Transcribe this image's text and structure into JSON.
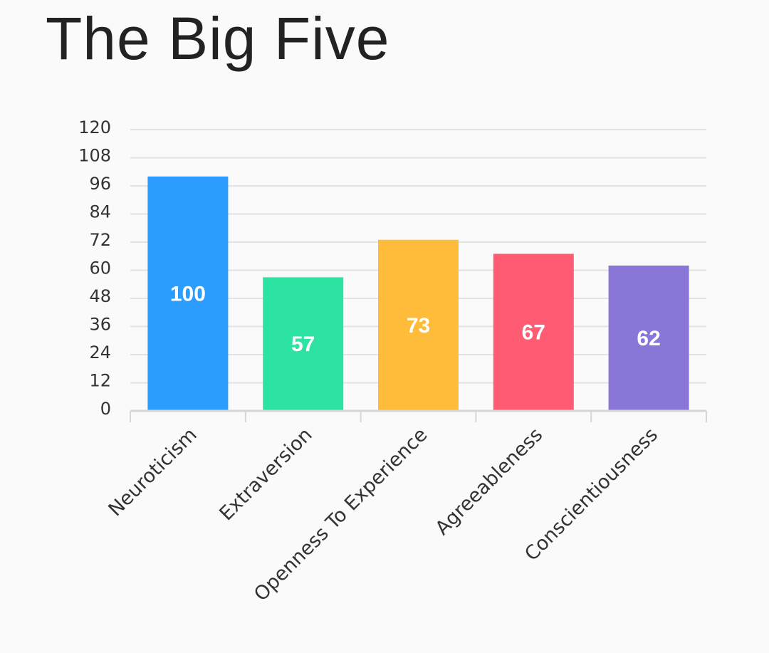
{
  "chart_data": {
    "type": "bar",
    "title": "The Big Five",
    "categories": [
      "Neuroticism",
      "Extraversion",
      "Openness To Experience",
      "Agreeableness",
      "Conscientiousness"
    ],
    "values": [
      100,
      57,
      73,
      67,
      62
    ],
    "data_labels": [
      "100",
      "57",
      "73",
      "67",
      "62"
    ],
    "colors": [
      "#2c9cff",
      "#2de3a2",
      "#ffbb3a",
      "#ff5b73",
      "#8a76d6"
    ],
    "yticks": [
      "0",
      "12",
      "24",
      "36",
      "48",
      "60",
      "72",
      "84",
      "96",
      "108",
      "120"
    ],
    "ylim": [
      0,
      120
    ],
    "grid": true,
    "legend": "none"
  }
}
